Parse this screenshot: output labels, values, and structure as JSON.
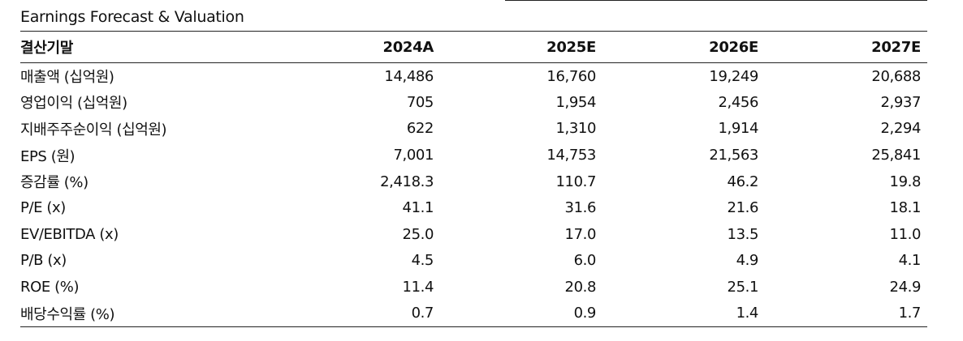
{
  "title": "Earnings Forecast & Valuation",
  "table": {
    "header": [
      "결산기말",
      "2024A",
      "2025E",
      "2026E",
      "2027E"
    ],
    "rows": [
      {
        "label": "매출액 (십억원)",
        "values": [
          "14,486",
          "16,760",
          "19,249",
          "20,688"
        ]
      },
      {
        "label": "영업이익 (십억원)",
        "values": [
          "705",
          "1,954",
          "2,456",
          "2,937"
        ]
      },
      {
        "label": "지배주주순이익 (십억원)",
        "values": [
          "622",
          "1,310",
          "1,914",
          "2,294"
        ]
      },
      {
        "label": "EPS (원)",
        "values": [
          "7,001",
          "14,753",
          "21,563",
          "25,841"
        ]
      },
      {
        "label": "증감률 (%)",
        "values": [
          "2,418.3",
          "110.7",
          "46.2",
          "19.8"
        ]
      },
      {
        "label": "P/E (x)",
        "values": [
          "41.1",
          "31.6",
          "21.6",
          "18.1"
        ]
      },
      {
        "label": "EV/EBITDA (x)",
        "values": [
          "25.0",
          "17.0",
          "13.5",
          "11.0"
        ]
      },
      {
        "label": "P/B (x)",
        "values": [
          "4.5",
          "6.0",
          "4.9",
          "4.1"
        ]
      },
      {
        "label": "ROE (%)",
        "values": [
          "11.4",
          "20.8",
          "25.1",
          "24.9"
        ]
      },
      {
        "label": "배당수익률 (%)",
        "values": [
          "0.7",
          "0.9",
          "1.4",
          "1.7"
        ]
      }
    ]
  }
}
